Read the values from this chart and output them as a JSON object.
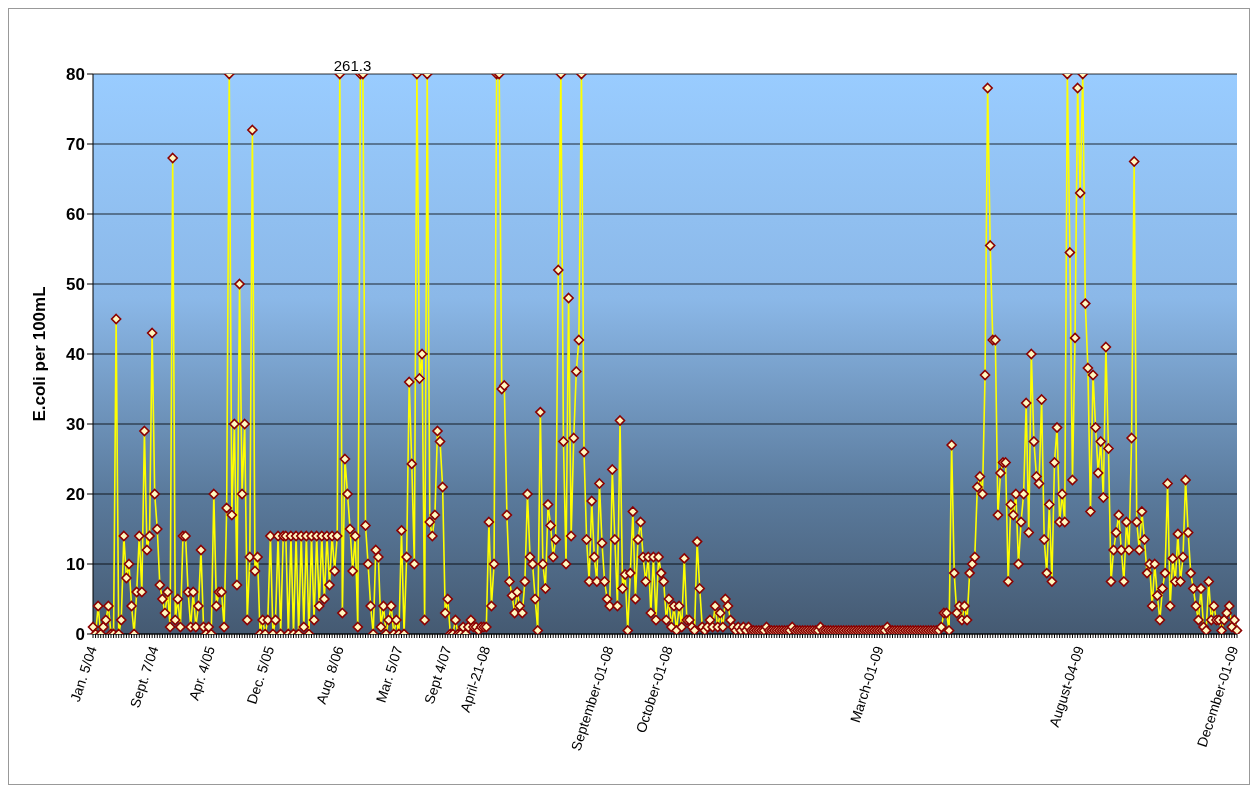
{
  "chart_data": {
    "type": "line",
    "ylabel": "E.coli per 100mL",
    "categories": [
      "Jan. 5/04",
      null,
      null,
      null,
      null,
      null,
      null,
      null,
      null,
      null,
      null,
      null,
      null,
      null,
      null,
      null,
      null,
      null,
      null,
      null,
      null,
      null,
      null,
      null,
      "Sept. 7/04",
      null,
      null,
      null,
      null,
      null,
      null,
      null,
      null,
      null,
      null,
      null,
      null,
      null,
      null,
      null,
      null,
      null,
      null,
      null,
      null,
      null,
      "Apr. 4/05",
      null,
      null,
      null,
      null,
      null,
      null,
      null,
      null,
      null,
      null,
      null,
      null,
      null,
      null,
      null,
      null,
      null,
      null,
      null,
      null,
      null,
      null,
      "Dec. 5/05",
      null,
      null,
      null,
      null,
      null,
      null,
      null,
      null,
      null,
      null,
      null,
      null,
      null,
      null,
      null,
      null,
      null,
      null,
      null,
      null,
      null,
      null,
      null,
      null,
      null,
      null,
      "Aug. 8/06",
      null,
      null,
      null,
      null,
      null,
      null,
      null,
      null,
      null,
      null,
      null,
      null,
      null,
      null,
      null,
      null,
      null,
      null,
      null,
      null,
      null,
      null,
      "Mar. 5/07",
      null,
      null,
      null,
      null,
      null,
      null,
      null,
      null,
      null,
      null,
      null,
      null,
      null,
      null,
      null,
      null,
      null,
      null,
      "Sept 4/07",
      null,
      null,
      null,
      null,
      null,
      null,
      null,
      null,
      null,
      null,
      null,
      null,
      null,
      null,
      "April-21-08",
      null,
      null,
      null,
      null,
      null,
      null,
      null,
      null,
      null,
      null,
      null,
      null,
      null,
      null,
      null,
      null,
      null,
      null,
      null,
      null,
      null,
      null,
      null,
      null,
      null,
      null,
      null,
      null,
      null,
      null,
      null,
      null,
      null,
      null,
      null,
      null,
      null,
      null,
      null,
      null,
      null,
      null,
      null,
      null,
      null,
      null,
      null,
      "September-01-08",
      null,
      null,
      null,
      null,
      null,
      null,
      null,
      null,
      null,
      null,
      null,
      null,
      null,
      null,
      null,
      null,
      null,
      null,
      null,
      null,
      null,
      null,
      "October-01-08",
      null,
      null,
      null,
      null,
      null,
      null,
      null,
      null,
      null,
      null,
      null,
      null,
      null,
      null,
      null,
      null,
      null,
      null,
      null,
      null,
      null,
      null,
      null,
      null,
      null,
      null,
      null,
      null,
      null,
      null,
      null,
      null,
      null,
      null,
      null,
      null,
      null,
      null,
      null,
      null,
      null,
      null,
      null,
      null,
      null,
      null,
      null,
      null,
      null,
      null,
      null,
      null,
      null,
      null,
      null,
      null,
      null,
      null,
      null,
      null,
      null,
      null,
      null,
      null,
      null,
      null,
      null,
      null,
      null,
      null,
      null,
      null,
      null,
      null,
      null,
      null,
      null,
      null,
      null,
      null,
      null,
      "March-01-09",
      null,
      null,
      null,
      null,
      null,
      null,
      null,
      null,
      null,
      null,
      null,
      null,
      null,
      null,
      null,
      null,
      null,
      null,
      null,
      null,
      null,
      null,
      null,
      null,
      null,
      null,
      null,
      null,
      null,
      null,
      null,
      null,
      null,
      null,
      null,
      null,
      null,
      null,
      null,
      null,
      null,
      null,
      null,
      null,
      null,
      null,
      null,
      null,
      null,
      null,
      null,
      null,
      null,
      null,
      null,
      null,
      null,
      null,
      null,
      null,
      null,
      null,
      null,
      null,
      null,
      null,
      null,
      null,
      null,
      null,
      null,
      null,
      null,
      null,
      null,
      null,
      null,
      "August-04-09",
      null,
      null,
      null,
      null,
      null,
      null,
      null,
      null,
      null,
      null,
      null,
      null,
      null,
      null,
      null,
      null,
      null,
      null,
      null,
      null,
      null,
      null,
      null,
      null,
      null,
      null,
      null,
      null,
      null,
      null,
      null,
      null,
      null,
      null,
      null,
      null,
      null,
      null,
      null,
      null,
      null,
      null,
      null,
      null,
      null,
      null,
      null,
      null,
      null,
      null,
      null,
      null,
      null,
      null,
      null,
      null,
      null,
      null,
      null,
      "December-01-09",
      null
    ],
    "series": [
      {
        "color": "#ffff00",
        "values": [
          1,
          0,
          4,
          0,
          1,
          2,
          4,
          0,
          0,
          45,
          0,
          2,
          14,
          8,
          10,
          4,
          0,
          6,
          14,
          6,
          29,
          12,
          14,
          43,
          20,
          15,
          7,
          5,
          3,
          6,
          1,
          68,
          2,
          5,
          1,
          14,
          14,
          6,
          1,
          6,
          1,
          4,
          12,
          1,
          0,
          1,
          0,
          20,
          4,
          6,
          6,
          1,
          18,
          80,
          17,
          30,
          7,
          50,
          20,
          30,
          2,
          11,
          72,
          9,
          11,
          0,
          2,
          0,
          2,
          14,
          0,
          2,
          14,
          0,
          14,
          14,
          0,
          14,
          0,
          14,
          0,
          14,
          1,
          14,
          0,
          14,
          2,
          14,
          4,
          14,
          5,
          14,
          7,
          14,
          9,
          14,
          80,
          3,
          25,
          20,
          15,
          9,
          14,
          1,
          80,
          80,
          15.5,
          10,
          4,
          0,
          12,
          11,
          1,
          4,
          0,
          2,
          4,
          0,
          2,
          0,
          14.8,
          0,
          11,
          36,
          24.3,
          10,
          80,
          36.5,
          40,
          2,
          80,
          16,
          14,
          17,
          29,
          27.5,
          21,
          3,
          5,
          0,
          0,
          2,
          0,
          0,
          1,
          0,
          1,
          2,
          1,
          1,
          0.5,
          1,
          1,
          1,
          16,
          4,
          10,
          80,
          80,
          35,
          35.5,
          17,
          7.5,
          5.5,
          3,
          6,
          4,
          3,
          7.5,
          20,
          11,
          10,
          5,
          0.5,
          31.7,
          10,
          6.5,
          18.5,
          15.5,
          11,
          13.5,
          52,
          80,
          27.5,
          10,
          48,
          14,
          28,
          37.5,
          42,
          80,
          26,
          13.5,
          7.5,
          19,
          11,
          7.5,
          21.5,
          13,
          7.5,
          5,
          4,
          23.5,
          13.5,
          4,
          30.5,
          6.5,
          8.5,
          0.5,
          8.7,
          17.5,
          5,
          13.5,
          16,
          11,
          7.5,
          11,
          3,
          11,
          2,
          11,
          8.7,
          7.5,
          2,
          5,
          1,
          4,
          0.5,
          4,
          1,
          10.8,
          2,
          2,
          1,
          0.5,
          13.2,
          6.5,
          1,
          0.5,
          1,
          2,
          1,
          4,
          1,
          3,
          1,
          5,
          4,
          2,
          1,
          0.5,
          1,
          0.5,
          1,
          0.5,
          1,
          0.5,
          0.5,
          0.5,
          0.5,
          0.5,
          0.5,
          1,
          0.5,
          0.5,
          0.5,
          0.5,
          0.5,
          0.5,
          0.5,
          0.5,
          0.5,
          1,
          0.5,
          0.5,
          0.5,
          0.5,
          0.5,
          0.5,
          0.5,
          0.5,
          0.5,
          0.5,
          1,
          0.5,
          0.5,
          0.5,
          0.5,
          0.5,
          0.5,
          0.5,
          0.5,
          0.5,
          0.5,
          0.5,
          0.5,
          0.5,
          0.5,
          0.5,
          0.5,
          0.5,
          0.5,
          0.5,
          0.5,
          0.5,
          0.5,
          0.5,
          0.5,
          0.5,
          1,
          0.5,
          0.5,
          0.5,
          0.5,
          0.5,
          0.5,
          0.5,
          0.5,
          0.5,
          0.5,
          0.5,
          0.5,
          0.5,
          0.5,
          0.5,
          0.5,
          0.5,
          0.5,
          0.5,
          0.5,
          1,
          3,
          3,
          0.5,
          27,
          8.7,
          3,
          4,
          2,
          4,
          2,
          8.7,
          10,
          11,
          21,
          22.5,
          20,
          37,
          78,
          55.5,
          42,
          42,
          17,
          23,
          24.5,
          24.5,
          7.5,
          18.5,
          17,
          20,
          10,
          16,
          20,
          33,
          14.5,
          40,
          27.5,
          22.5,
          21.5,
          33.5,
          13.5,
          8.7,
          18.5,
          7.5,
          24.5,
          29.5,
          16,
          20,
          16,
          80,
          54.5,
          22,
          42.3,
          78,
          63,
          80,
          47.2,
          38,
          17.5,
          37,
          29.5,
          23,
          27.5,
          19.5,
          41,
          26.5,
          7.5,
          12,
          14.5,
          17,
          12,
          7.5,
          16,
          12,
          28,
          67.5,
          16,
          12,
          17.5,
          13.5,
          8.7,
          10,
          4,
          10,
          5.5,
          2,
          6.5,
          8.7,
          21.5,
          4,
          10.8,
          7.5,
          14.3,
          7.5,
          11,
          22,
          14.5,
          8.7,
          6.5,
          4,
          2,
          6.5,
          1,
          0.5,
          7.5,
          2,
          4,
          2,
          2,
          0.5,
          2,
          3,
          4,
          1,
          2,
          0.5
        ]
      }
    ],
    "annotations": [
      {
        "text": "261.3",
        "x": "Aug. 8/06",
        "y": 80
      }
    ],
    "marker": "diamond",
    "line_style": "solid",
    "ylim": [
      0,
      80
    ],
    "yticks": [
      0,
      10,
      20,
      30,
      40,
      50,
      60,
      70,
      80
    ],
    "grid": "y",
    "legend": false
  }
}
